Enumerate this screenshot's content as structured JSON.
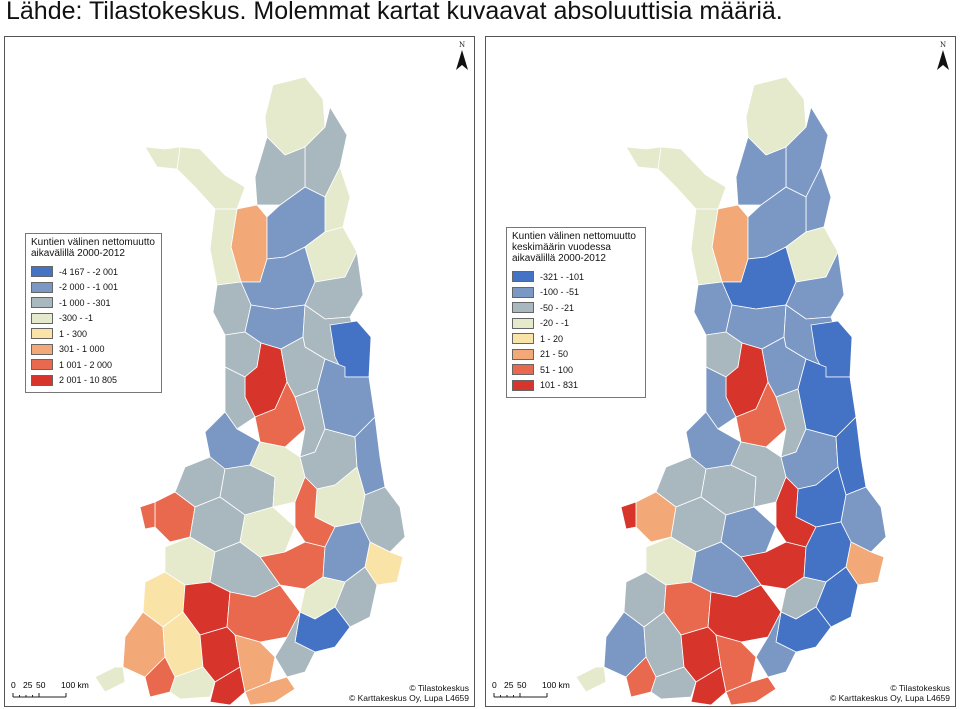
{
  "caption": "Lähde: Tilastokeskus. Molemmat kartat kuvaavat absoluuttisia määriä.",
  "colors": {
    "background": "#ffffff",
    "border": "#555555",
    "land_outline": "#ffffff"
  },
  "maps": [
    {
      "north_label": "N",
      "legend": {
        "title_lines": [
          "Kuntien välinen nettomuutto",
          "aikavälillä 2000-2012"
        ],
        "classes": [
          {
            "label": "-4 167 - -2 001",
            "color": "#4472c4"
          },
          {
            "label": "-2 000 - -1 001",
            "color": "#7b98c4"
          },
          {
            "label": "-1 000 - -301",
            "color": "#a9b8bf"
          },
          {
            "label": "-300 - -1",
            "color": "#e4eacb"
          },
          {
            "label": "1 - 300",
            "color": "#fae3a6"
          },
          {
            "label": "301 - 1 000",
            "color": "#f2a877"
          },
          {
            "label": "1 001 - 2 000",
            "color": "#e8694e"
          },
          {
            "label": "2 001 - 10 805",
            "color": "#d7342c"
          }
        ]
      },
      "scale": {
        "ticks": [
          "0",
          "25",
          "50",
          "100 km"
        ]
      },
      "credits": [
        "© Tilastokeskus",
        "© Karttakeskus Oy, Lupa L4659"
      ]
    },
    {
      "north_label": "N",
      "legend": {
        "title_lines": [
          "Kuntien välinen nettomuutto",
          "keskimäärin vuodessa",
          "aikavälillä 2000-2012"
        ],
        "classes": [
          {
            "label": "-321 - -101",
            "color": "#4472c4"
          },
          {
            "label": "-100 - -51",
            "color": "#7b98c4"
          },
          {
            "label": "-50 - -21",
            "color": "#a9b8bf"
          },
          {
            "label": "-20 - -1",
            "color": "#e4eacb"
          },
          {
            "label": "1 - 20",
            "color": "#fae3a6"
          },
          {
            "label": "21 - 50",
            "color": "#f2a877"
          },
          {
            "label": "51 - 100",
            "color": "#e8694e"
          },
          {
            "label": "101 - 831",
            "color": "#d7342c"
          }
        ]
      },
      "scale": {
        "ticks": [
          "0",
          "25",
          "50",
          "100 km"
        ]
      },
      "credits": [
        "© Tilastokeskus",
        "© Karttakeskus Oy, Lupa L4659"
      ]
    }
  ]
}
